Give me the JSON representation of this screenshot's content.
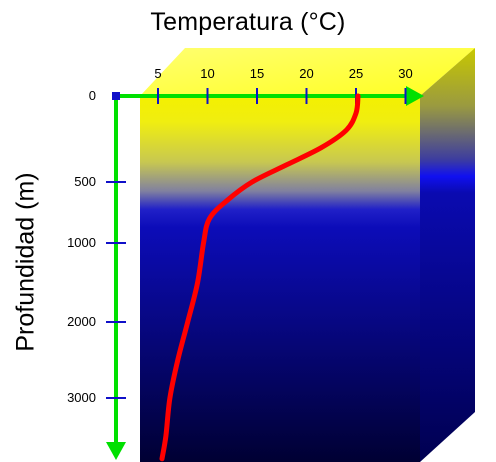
{
  "chart_data": {
    "type": "line",
    "title": "Temperatura (°C)",
    "xlabel": "Temperatura (°C)",
    "ylabel": "Profundidad (m)",
    "x_ticks": [
      5,
      10,
      15,
      20,
      25,
      30
    ],
    "y_ticks": [
      0,
      500,
      1000,
      2000,
      3000
    ],
    "series": [
      {
        "x": [
          25.2,
          25.0,
          24.0,
          21.5,
          18.0,
          14.5,
          12.0,
          10.2,
          9.6,
          9.0,
          8.0,
          7.0,
          6.2,
          5.8,
          5.4
        ],
        "y": [
          0,
          100,
          200,
          300,
          400,
          500,
          650,
          800,
          1000,
          1500,
          2000,
          2500,
          3000,
          3500,
          3800
        ]
      }
    ],
    "colors": {
      "curve": "#ff0000",
      "axes": "#00e000",
      "ticks": "#1010c8",
      "surface_layer": "#ffff33",
      "deep_layer": "#0a0a90"
    }
  }
}
